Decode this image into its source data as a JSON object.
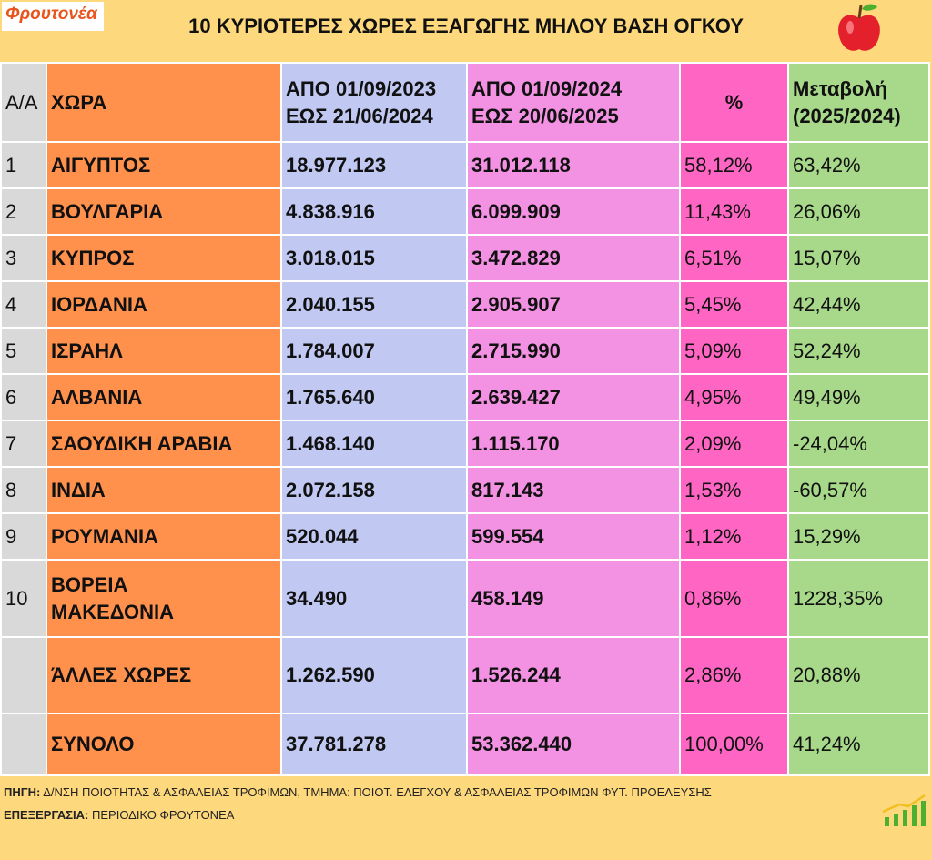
{
  "header": {
    "logo": "Φρουτονέα",
    "title": "10 ΚΥΡΙΟΤΕΡΕΣ ΧΩΡΕΣ ΕΞΑΓΩΓΗΣ ΜΗΛΟΥ ΒΑΣΗ ΟΓΚΟΥ"
  },
  "table": {
    "columns": {
      "aa": [
        "Α/Α"
      ],
      "country": [
        "ΧΩΡΑ"
      ],
      "v2024": [
        "ΑΠΟ 01/09/2023",
        "ΕΩΣ 21/06/2024"
      ],
      "v2025": [
        "ΑΠΟ 01/09/2024",
        "ΕΩΣ  20/06/2025"
      ],
      "pct": [
        "%"
      ],
      "change": [
        "Μεταβολή",
        "(2025/2024)"
      ]
    },
    "rows": [
      {
        "aa": "1",
        "country": [
          "ΑΙΓΥΠΤΟΣ"
        ],
        "v2024": "18.977.123",
        "v2025": "31.012.118",
        "pct": "58,12%",
        "change": "63,42%"
      },
      {
        "aa": "2",
        "country": [
          "ΒΟΥΛΓΑΡΙΑ"
        ],
        "v2024": "4.838.916",
        "v2025": "6.099.909",
        "pct": "11,43%",
        "change": "26,06%"
      },
      {
        "aa": "3",
        "country": [
          "ΚΥΠΡΟΣ"
        ],
        "v2024": "3.018.015",
        "v2025": "3.472.829",
        "pct": "6,51%",
        "change": "15,07%"
      },
      {
        "aa": "4",
        "country": [
          "ΙΟΡΔΑΝΙΑ"
        ],
        "v2024": "2.040.155",
        "v2025": "2.905.907",
        "pct": "5,45%",
        "change": "42,44%"
      },
      {
        "aa": "5",
        "country": [
          "ΙΣΡΑΗΛ"
        ],
        "v2024": "1.784.007",
        "v2025": "2.715.990",
        "pct": "5,09%",
        "change": "52,24%"
      },
      {
        "aa": "6",
        "country": [
          "ΑΛΒΑΝΙΑ"
        ],
        "v2024": "1.765.640",
        "v2025": "2.639.427",
        "pct": "4,95%",
        "change": "49,49%"
      },
      {
        "aa": "7",
        "country": [
          "ΣΑΟΥΔΙΚΗ ΑΡΑΒΙΑ"
        ],
        "v2024": "1.468.140",
        "v2025": "1.115.170",
        "pct": "2,09%",
        "change": "-24,04%"
      },
      {
        "aa": "8",
        "country": [
          "ΙΝΔΙΑ"
        ],
        "v2024": "2.072.158",
        "v2025": "817.143",
        "pct": "1,53%",
        "change": "-60,57%"
      },
      {
        "aa": "9",
        "country": [
          "ΡΟΥΜΑΝΙΑ"
        ],
        "v2024": "520.044",
        "v2025": "599.554",
        "pct": "1,12%",
        "change": "15,29%"
      },
      {
        "aa": "10",
        "country": [
          "ΒΟΡΕΙΑ",
          "ΜΑΚΕΔΟΝΙΑ"
        ],
        "v2024": "34.490",
        "v2025": "458.149",
        "pct": "0,86%",
        "change": "1228,35%"
      },
      {
        "country": [
          "ΆΛΛΕΣ ΧΩΡΕΣ"
        ],
        "v2024": "1.262.590",
        "v2025": "1.526.244",
        "pct": "2,86%",
        "change": "20,88%"
      },
      {
        "country": [
          "ΣΥΝΟΛΟ"
        ],
        "v2024": "37.781.278",
        "v2025": "53.362.440",
        "pct": "100,00%",
        "change": "41,24%"
      }
    ]
  },
  "footer": {
    "source_label": "ΠΗΓΗ:",
    "source": "Δ/ΝΣΗ ΠΟΙΟΤΗΤΑΣ & ΑΣΦΑΛΕΙΑΣ ΤΡΟΦΙΜΩΝ, ΤΜΗΜΑ: ΠΟΙΟΤ. ΕΛΕΓΧΟΥ & ΑΣΦΑΛΕΙΑΣ ΤΡΟΦΙΜΩΝ ΦΥΤ. ΠΡΟΕΛΕΥΣΗΣ",
    "processing_label": "ΕΠΕΞΕΡΓΑΣΙΑ:",
    "processing": "ΠΕΡΙΟΔΙΚΟ ΦΡΟΥΤΟΝΕΑ"
  }
}
